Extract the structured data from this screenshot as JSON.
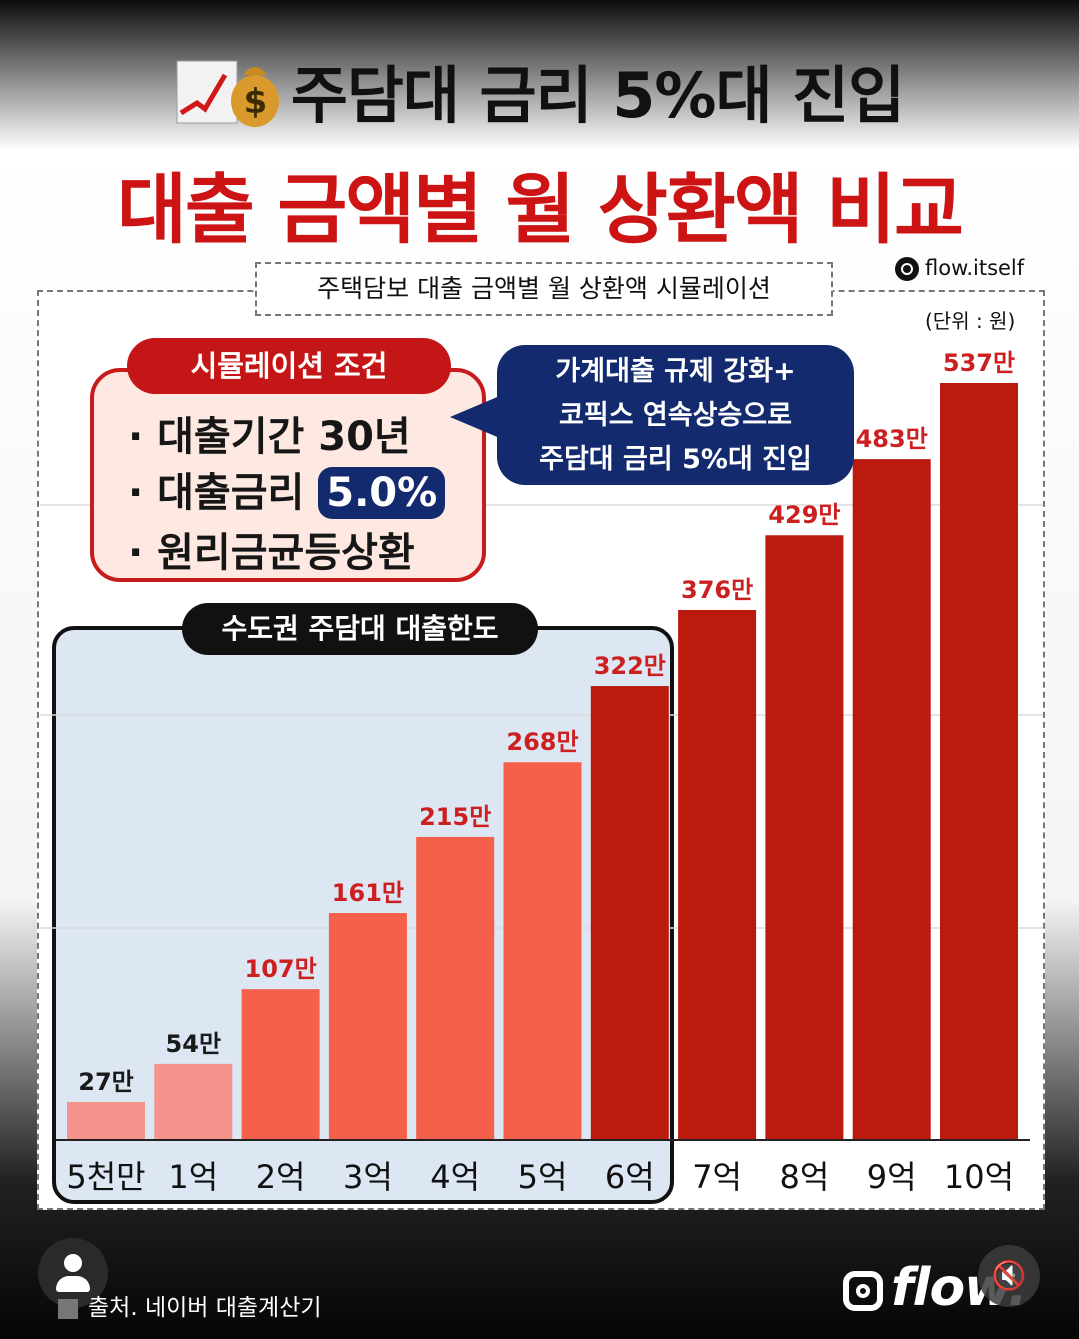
{
  "header": {
    "title": "주담대 금리 5%대 진입",
    "subtitle": "대출 금액별 월 상환액 비교"
  },
  "chart_header": {
    "label": "주택담보 대출 금액별 월 상환액 시뮬레이션",
    "handle": "flow.itself",
    "unit": "(단위 : 원)"
  },
  "conditions": {
    "header": "시뮬레이션 조건",
    "line1": "· 대출기간 30년",
    "line2_prefix": "· 대출금리 ",
    "rate": "5.0%",
    "line3": "· 원리금균등상환"
  },
  "note": {
    "line1": "가계대출 규제 강화+",
    "line2": "코픽스 연속상승으로",
    "line3": "주담대 금리 5%대 진입"
  },
  "region": {
    "label": "수도권 주담대 대출한도"
  },
  "footer": {
    "source": "출처. 네이버 대출계산기",
    "brand": "flow."
  },
  "colors": {
    "title_red": "#cc1414",
    "bar_light": "#f4948d",
    "bar_mid": "#f5604a",
    "bar_dark": "#bb1a0f",
    "label_red": "#cc1f1f",
    "navy": "#132a6e"
  },
  "chart_data": {
    "type": "bar",
    "categories": [
      "5천만",
      "1억",
      "2억",
      "3억",
      "4억",
      "5억",
      "6억",
      "7억",
      "8억",
      "9억",
      "10억"
    ],
    "values": [
      27,
      54,
      107,
      161,
      215,
      268,
      322,
      376,
      429,
      483,
      537
    ],
    "value_labels": [
      "27만",
      "54만",
      "107만",
      "161만",
      "215만",
      "268만",
      "322만",
      "376만",
      "429만",
      "483만",
      "537만"
    ],
    "ylim": [
      0,
      537
    ],
    "grid": true
  }
}
